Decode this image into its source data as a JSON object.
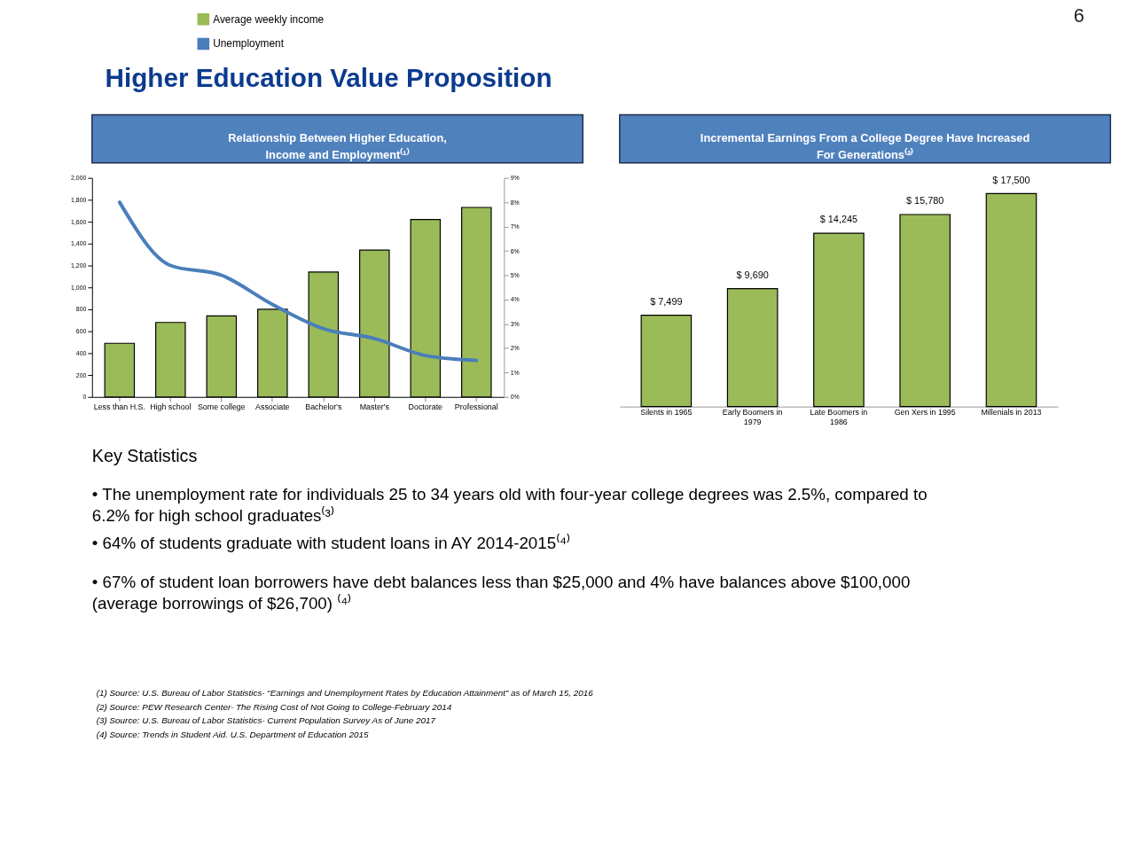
{
  "chart_data": [
    {
      "type": "bar",
      "title": "Relationship Between Higher Education,\nIncome and Employment⁽¹⁾",
      "categories": [
        "Less than H.S.",
        "High school",
        "Some college",
        "Associate",
        "Bachelor's",
        "Master's",
        "Doctorate",
        "Professional"
      ],
      "series": [
        {
          "name": "Average weekly income",
          "type": "bar",
          "color": "#9bbb59",
          "values": [
            490,
            680,
            740,
            800,
            1140,
            1340,
            1620,
            1730
          ]
        },
        {
          "name": "Unemployment",
          "type": "line",
          "axis": "y2",
          "color": "#4a7ebb",
          "values": [
            8.0,
            5.4,
            5.0,
            3.8,
            2.8,
            2.4,
            1.7,
            1.5
          ]
        }
      ],
      "ylim": [
        0,
        2000
      ],
      "yticks": [
        0,
        200,
        400,
        600,
        800,
        {
          "value": 1000,
          "label": "1,000"
        },
        {
          "value": 1200,
          "label": "1,200"
        },
        {
          "value": 1400,
          "label": "1,400"
        },
        {
          "value": 1600,
          "label": "1,600"
        },
        {
          "value": 1800,
          "label": "1,800"
        },
        {
          "value": 2000,
          "label": "2,000"
        }
      ],
      "y2lim": [
        0,
        9
      ],
      "y2ticks": [
        {
          "value": 0,
          "label": "0%"
        },
        {
          "value": 1,
          "label": "1%"
        },
        {
          "value": 2,
          "label": "2%"
        },
        {
          "value": 3,
          "label": "3%"
        },
        {
          "value": 4,
          "label": "4%"
        },
        {
          "value": 5,
          "label": "5%"
        },
        {
          "value": 6,
          "label": "6%"
        },
        {
          "value": 7,
          "label": "7%"
        },
        {
          "value": 8,
          "label": "8%"
        },
        {
          "value": 9,
          "label": "9%"
        }
      ],
      "grid": false,
      "legend": "top left",
      "marker": "none",
      "line_style": "solid",
      "annotations": [
        "6",
        "Higher Education Value Proposition",
        "Key Statistics",
        "• The unemployment rate for individuals 25 to 34 years old with four-year college degrees was 2.5%, compared to\n   6.2% for high school graduates⁽³⁾",
        "• 64% of students graduate with student loans in AY 2014-2015⁽⁴⁾",
        "• 67% of student loan borrowers have debt balances less than $25,000 and 4% have balances above $100,000\n   (average borrowings of $26,700) ⁽⁴⁾",
        "(1) Source:  U.S. Bureau of Labor Statistics- “Earnings and Unemployment Rates by Education Attainment” as of March 15, 2016",
        "(2) Source:  PEW Research Center- The Rising Cost of Not Going to College-February 2014",
        "(3) Source: U.S. Bureau of Labor Statistics- Current Population Survey As of June 2017",
        "(4) Source: Trends in Student Aid. U.S. Department of Education 2015"
      ]
    },
    {
      "type": "bar",
      "title": "Incremental Earnings From a College Degree Have Increased\nFor Generations⁽²⁾",
      "categories": [
        "Silents in 1965",
        "Early Boomers in 1979",
        "Late Boomers in 1986",
        "Gen Xers in 1995",
        "Millenials in 2013"
      ],
      "values": [
        7499,
        9690,
        14245,
        15780,
        17500
      ],
      "color": "#9bbb59",
      "value_labels": [
        "$ 7,499",
        "$ 9,690",
        "$ 14,245",
        "$ 15,780",
        "$ 17,500"
      ]
    }
  ]
}
